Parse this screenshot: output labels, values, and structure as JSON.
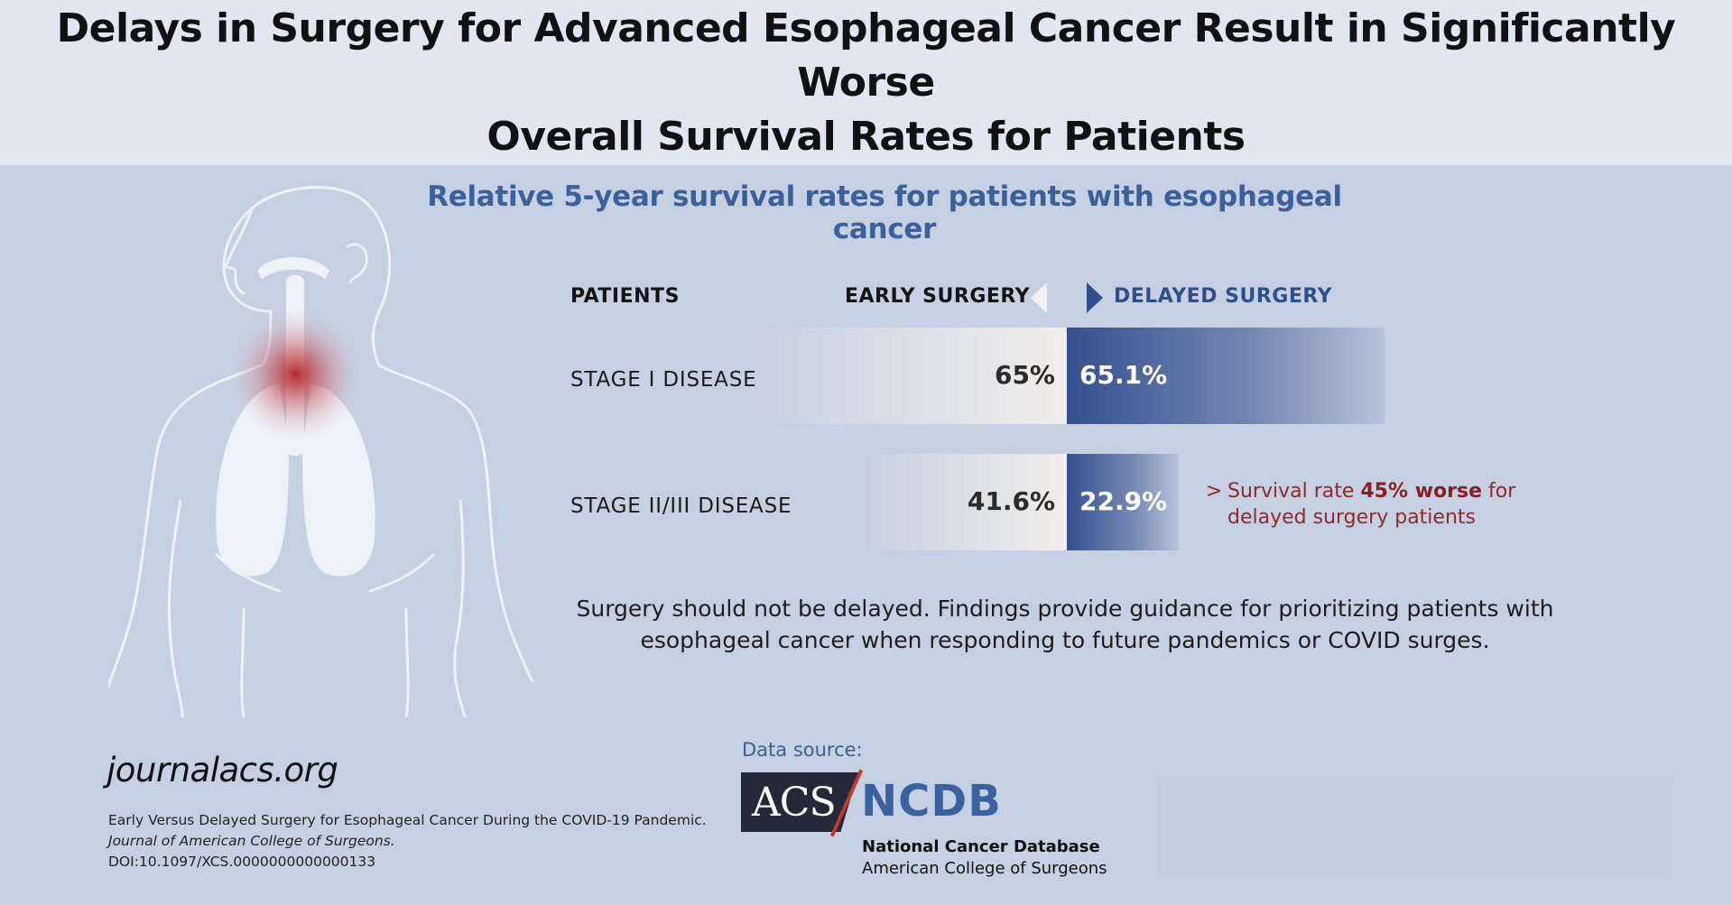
{
  "header": {
    "title_line1": "Delays in Surgery for Advanced Esophageal Cancer Result in Significantly Worse",
    "title_line2": "Overall Survival Rates for Patients"
  },
  "chart_data": {
    "type": "bar",
    "title": "Relative 5-year survival rates for patients with esophageal cancer",
    "column_headers": {
      "patients": "PATIENTS",
      "early": "EARLY SURGERY",
      "delayed": "DELAYED SURGERY"
    },
    "categories": [
      "STAGE I DISEASE",
      "STAGE II/III DISEASE"
    ],
    "series": [
      {
        "name": "EARLY SURGERY",
        "values": [
          65,
          41.6
        ],
        "labels": [
          "65%",
          "41.6%"
        ],
        "color": "#f1eeeb"
      },
      {
        "name": "DELAYED SURGERY",
        "values": [
          65.1,
          22.9
        ],
        "labels": [
          "65.1%",
          "22.9%"
        ],
        "color": "#35508f"
      }
    ],
    "annotation": {
      "prefix": ">",
      "text_before": "Survival rate ",
      "highlight": "45% worse",
      "text_after": " for delayed surgery patients",
      "color": "#8e2a2a"
    }
  },
  "conclusion": {
    "line1": "Surgery should not be delayed. Findings provide guidance for prioritizing patients with",
    "line2": "esophageal cancer when responding to future pandemics or COVID surges."
  },
  "footer": {
    "site": "journalacs.org",
    "citation_title": "Early Versus Delayed Surgery for Esophageal Cancer During the COVID-19 Pandemic.",
    "citation_journal": "Journal of American College of Surgeons.",
    "citation_doi": "DOI:10.1097/XCS.0000000000000133",
    "data_source_label": "Data source:",
    "logo_acs": "ACS",
    "logo_ncdb": "NCDB",
    "ncdb_name": "National Cancer Database",
    "ncdb_org": "American College of Surgeons"
  },
  "colors": {
    "background": "#c6d0e3",
    "header_bg": "#e1e6f0",
    "accent_blue": "#3b619a",
    "highlight_red": "#a51e1e"
  },
  "icons": [
    "human-torso-icon",
    "throat-highlight-icon",
    "lungs-icon",
    "chevron-left-icon",
    "chevron-right-icon"
  ]
}
